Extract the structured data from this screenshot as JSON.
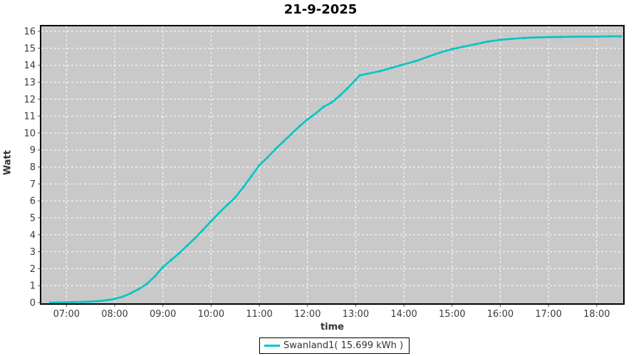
{
  "title": "21-9-2025",
  "chart_data": {
    "type": "line",
    "title": "21-9-2025",
    "xlabel": "time",
    "ylabel": "Watt",
    "x_range": [
      "06:30",
      "18:30"
    ],
    "x_ticks": [
      "07:00",
      "08:00",
      "09:00",
      "10:00",
      "11:00",
      "12:00",
      "13:00",
      "14:00",
      "15:00",
      "16:00",
      "17:00",
      "18:00"
    ],
    "ylim": [
      0,
      16
    ],
    "y_tick_step": 1,
    "grid": true,
    "plot_bg": "#c9c9c9",
    "grid_color": "#ffffff",
    "plot_border": "#000000",
    "tick_label_color": "#3a3a3a",
    "legend_position": "bottom",
    "series": [
      {
        "name": "Swanland1( 15.699 kWh )",
        "color": "#00c5c5",
        "total_kwh": "15.699",
        "points": [
          [
            "06:40",
            0.0
          ],
          [
            "06:50",
            0.01
          ],
          [
            "07:00",
            0.02
          ],
          [
            "07:10",
            0.03
          ],
          [
            "07:20",
            0.04
          ],
          [
            "07:30",
            0.06
          ],
          [
            "07:40",
            0.09
          ],
          [
            "07:50",
            0.14
          ],
          [
            "08:00",
            0.22
          ],
          [
            "08:10",
            0.35
          ],
          [
            "08:20",
            0.55
          ],
          [
            "08:30",
            0.8
          ],
          [
            "08:40",
            1.1
          ],
          [
            "08:50",
            1.55
          ],
          [
            "09:00",
            2.1
          ],
          [
            "09:10",
            2.5
          ],
          [
            "09:20",
            2.9
          ],
          [
            "09:30",
            3.35
          ],
          [
            "09:40",
            3.8
          ],
          [
            "09:50",
            4.3
          ],
          [
            "10:00",
            4.8
          ],
          [
            "10:10",
            5.3
          ],
          [
            "10:20",
            5.75
          ],
          [
            "10:30",
            6.2
          ],
          [
            "10:40",
            6.8
          ],
          [
            "10:50",
            7.45
          ],
          [
            "11:00",
            8.1
          ],
          [
            "11:10",
            8.55
          ],
          [
            "11:20",
            9.05
          ],
          [
            "11:30",
            9.5
          ],
          [
            "11:40",
            9.95
          ],
          [
            "11:50",
            10.4
          ],
          [
            "12:00",
            10.8
          ],
          [
            "12:10",
            11.15
          ],
          [
            "12:20",
            11.55
          ],
          [
            "12:30",
            11.8
          ],
          [
            "12:40",
            12.2
          ],
          [
            "12:50",
            12.65
          ],
          [
            "13:00",
            13.15
          ],
          [
            "13:05",
            13.4
          ],
          [
            "13:15",
            13.5
          ],
          [
            "13:30",
            13.65
          ],
          [
            "13:45",
            13.85
          ],
          [
            "14:00",
            14.05
          ],
          [
            "14:15",
            14.25
          ],
          [
            "14:30",
            14.5
          ],
          [
            "14:45",
            14.75
          ],
          [
            "15:00",
            14.95
          ],
          [
            "15:15",
            15.1
          ],
          [
            "15:30",
            15.25
          ],
          [
            "15:45",
            15.4
          ],
          [
            "16:00",
            15.5
          ],
          [
            "16:15",
            15.56
          ],
          [
            "16:30",
            15.61
          ],
          [
            "16:45",
            15.64
          ],
          [
            "17:00",
            15.66
          ],
          [
            "17:15",
            15.67
          ],
          [
            "17:30",
            15.68
          ],
          [
            "17:45",
            15.69
          ],
          [
            "18:00",
            15.69
          ],
          [
            "18:15",
            15.7
          ],
          [
            "18:30",
            15.7
          ]
        ]
      }
    ]
  },
  "legend": {
    "label": "Swanland1( 15.699 kWh )"
  }
}
